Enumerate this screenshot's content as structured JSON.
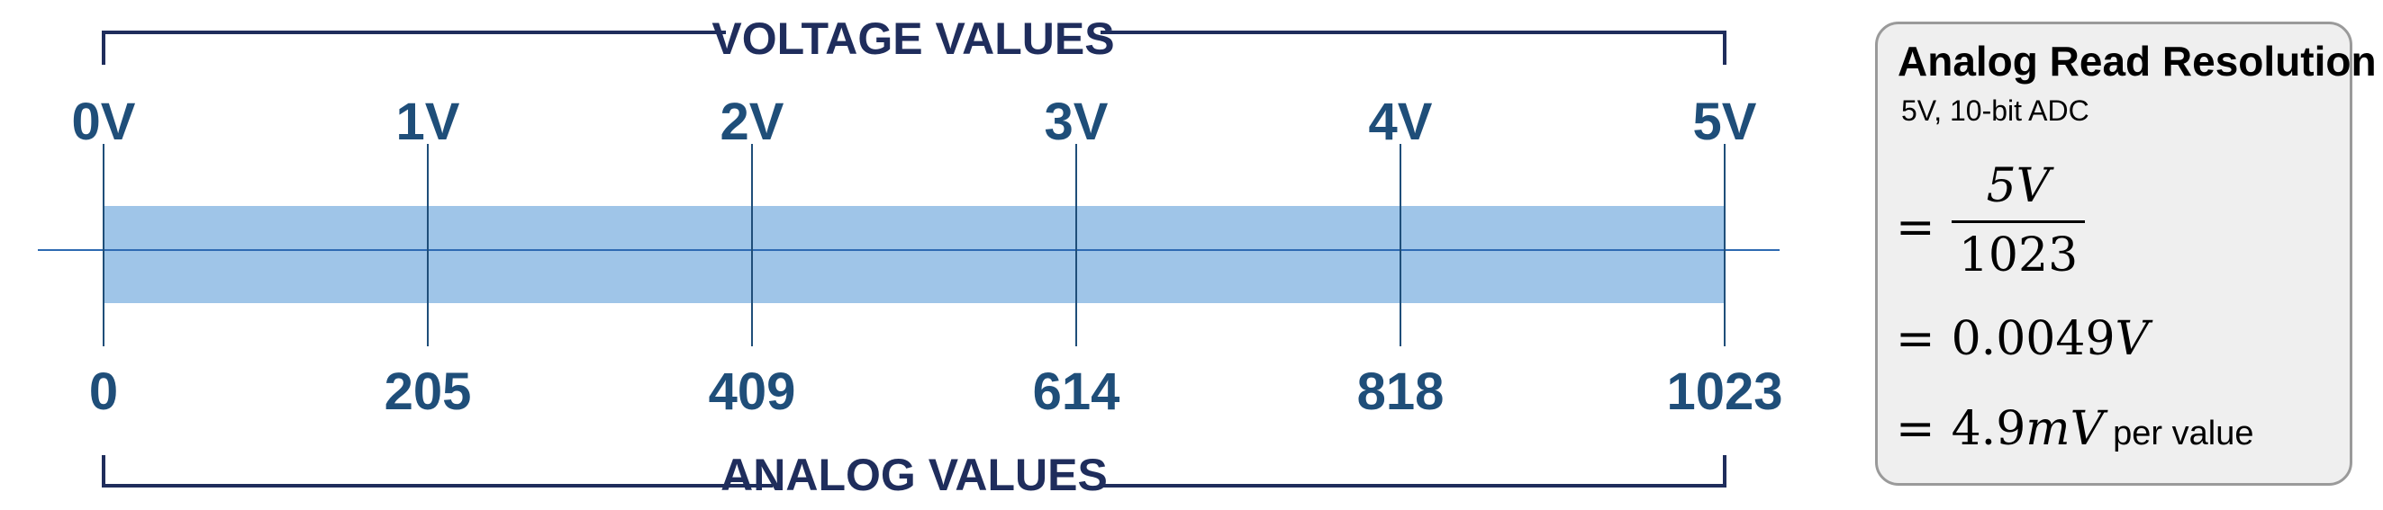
{
  "colors": {
    "label": "#1f4e79",
    "bracket": "#1f2d5c",
    "band": "#9fc5e8",
    "line": "#2e6ab2",
    "box_border": "#9a9a9a",
    "box_bg": "#efefef"
  },
  "voltage_values_title": "VOLTAGE VALUES",
  "analog_values_title": "ANALOG VALUES",
  "ticks": [
    {
      "voltage": "0V",
      "analog": "0"
    },
    {
      "voltage": "1V",
      "analog": "205"
    },
    {
      "voltage": "2V",
      "analog": "409"
    },
    {
      "voltage": "3V",
      "analog": "614"
    },
    {
      "voltage": "4V",
      "analog": "818"
    },
    {
      "voltage": "5V",
      "analog": "1023"
    }
  ],
  "resolution": {
    "title": "Analog Read Resolution",
    "subtitle": "5V, 10-bit ADC",
    "eq_sign": "=",
    "fraction_numerator": "5V",
    "fraction_denominator": "1023",
    "value_volts_number": "0.0049",
    "value_volts_unit": "V",
    "value_millivolts_number": "4.9",
    "value_millivolts_unit": "mV",
    "per_value": "per value"
  }
}
